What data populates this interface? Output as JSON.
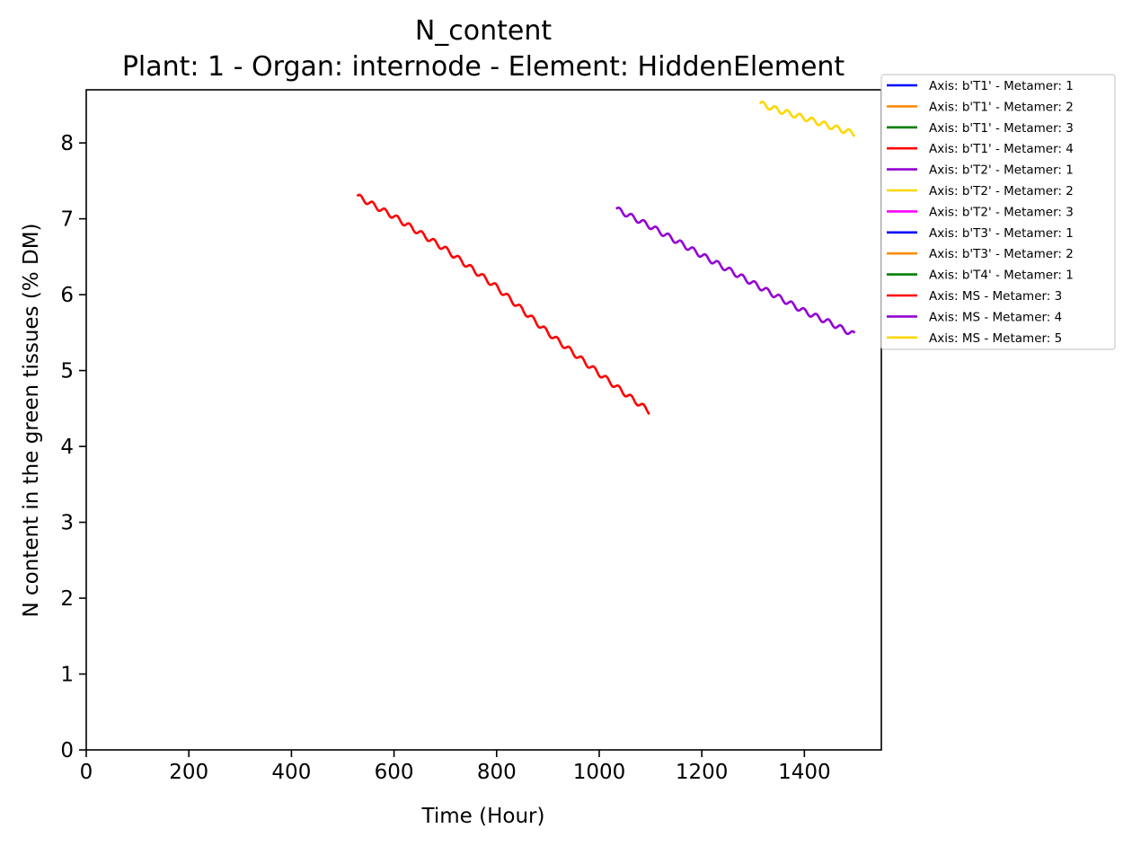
{
  "chart_data": {
    "type": "line",
    "title": "N_content",
    "subtitle": "Plant: 1 - Organ: internode - Element: HiddenElement",
    "xlabel": "Time (Hour)",
    "ylabel": "N content in the green tissues (% DM)",
    "xlim": [
      0,
      1550
    ],
    "ylim": [
      0,
      8.7
    ],
    "xticks": [
      0,
      200,
      400,
      600,
      800,
      1000,
      1200,
      1400
    ],
    "yticks": [
      0,
      1,
      2,
      3,
      4,
      5,
      6,
      7,
      8
    ],
    "grid": false,
    "legend_placement": "outside-right-top",
    "wave": {
      "period_hours": 24,
      "amplitude": 0.035
    },
    "series": [
      {
        "name": "Axis: b'T1' - Metamer: 1",
        "color": "#0000ff",
        "x": [],
        "y": []
      },
      {
        "name": "Axis: b'T1' - Metamer: 2",
        "color": "#ff8c00",
        "x": [],
        "y": []
      },
      {
        "name": "Axis: b'T1' - Metamer: 3",
        "color": "#008000",
        "x": [],
        "y": []
      },
      {
        "name": "Axis: b'T1' - Metamer: 4",
        "color": "#ff0000",
        "x": [],
        "y": []
      },
      {
        "name": "Axis: b'T2' - Metamer: 1",
        "color": "#9400d3",
        "x": [],
        "y": []
      },
      {
        "name": "Axis: b'T2' - Metamer: 2",
        "color": "#ffd700",
        "x": [],
        "y": []
      },
      {
        "name": "Axis: b'T2' - Metamer: 3",
        "color": "#ff00ff",
        "x": [],
        "y": []
      },
      {
        "name": "Axis: b'T3' - Metamer: 1",
        "color": "#0000ff",
        "x": [],
        "y": []
      },
      {
        "name": "Axis: b'T3' - Metamer: 2",
        "color": "#ff8c00",
        "x": [],
        "y": []
      },
      {
        "name": "Axis: b'T4' - Metamer: 1",
        "color": "#008000",
        "x": [],
        "y": []
      },
      {
        "name": "Axis: MS - Metamer: 3",
        "color": "#ff0000",
        "x": [
          528,
          600,
          700,
          800,
          900,
          1000,
          1050,
          1080,
          1098
        ],
        "y": [
          7.3,
          7.03,
          6.6,
          6.1,
          5.5,
          4.96,
          4.7,
          4.55,
          4.46
        ]
      },
      {
        "name": "Axis: MS - Metamer: 4",
        "color": "#9400d3",
        "x": [
          1033,
          1100,
          1200,
          1300,
          1400,
          1450,
          1498
        ],
        "y": [
          7.13,
          6.9,
          6.52,
          6.15,
          5.78,
          5.63,
          5.47
        ]
      },
      {
        "name": "Axis: MS - Metamer: 5",
        "color": "#ffd700",
        "x": [
          1313,
          1350,
          1400,
          1450,
          1498
        ],
        "y": [
          8.52,
          8.43,
          8.33,
          8.22,
          8.12
        ]
      }
    ]
  }
}
